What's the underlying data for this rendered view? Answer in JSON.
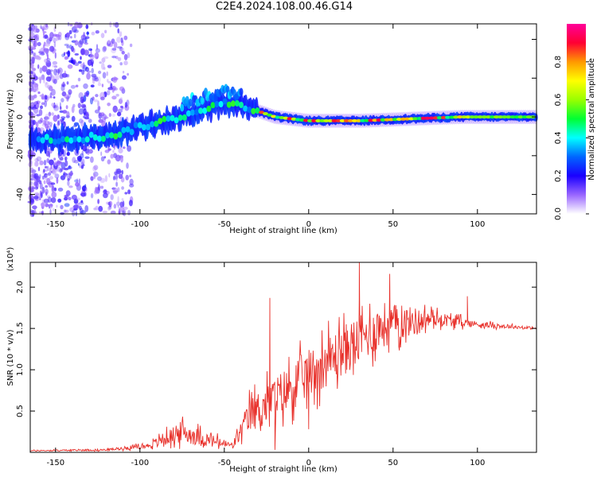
{
  "title": "C2E4.2024.108.00.46.G14",
  "chart_data": [
    {
      "type": "heatmap",
      "xlabel": "Height of straight line (km)",
      "ylabel": "Frequency (Hz)",
      "xlim": [
        -165,
        135
      ],
      "ylim": [
        -50,
        48
      ],
      "x_ticks": [
        -150,
        -100,
        -50,
        0,
        50,
        100
      ],
      "y_ticks": [
        -40,
        -20,
        0,
        20,
        40
      ],
      "colorbar": {
        "label": "Normalized spectral amplitude",
        "range": [
          0,
          1
        ],
        "ticks": [
          0.0,
          0.2,
          0.4,
          0.6,
          0.8
        ],
        "colormap": [
          "#ffffff",
          "#9966ff",
          "#1a00ff",
          "#0066ff",
          "#00ffff",
          "#00ff33",
          "#99ff00",
          "#ffff00",
          "#ff9900",
          "#ff0033",
          "#ff0099"
        ]
      },
      "ridge": [
        {
          "x": -165,
          "f": -12
        },
        {
          "x": -140,
          "f": -11
        },
        {
          "x": -120,
          "f": -10
        },
        {
          "x": -110,
          "f": -8
        },
        {
          "x": -100,
          "f": -5
        },
        {
          "x": -90,
          "f": -3
        },
        {
          "x": -80,
          "f": -1
        },
        {
          "x": -70,
          "f": 2
        },
        {
          "x": -60,
          "f": 5
        },
        {
          "x": -50,
          "f": 7
        },
        {
          "x": -40,
          "f": 6
        },
        {
          "x": -30,
          "f": 3
        },
        {
          "x": -20,
          "f": 0
        },
        {
          "x": 0,
          "f": -2
        },
        {
          "x": 30,
          "f": -2
        },
        {
          "x": 60,
          "f": -1
        },
        {
          "x": 90,
          "f": 0
        },
        {
          "x": 135,
          "f": 0
        }
      ],
      "notes": "Energy concentrated along a ridge rising from about -12 Hz at -165 km to about +7 Hz near -50 km, then flat near 0 Hz beyond -25 km."
    },
    {
      "type": "line",
      "xlabel": "Height of straight line (km)",
      "ylabel": "SNR (10 * v/v)",
      "y_multiplier": "(x10⁴)",
      "xlim": [
        -165,
        135
      ],
      "ylim": [
        0,
        2.3
      ],
      "x_ticks": [
        -150,
        -100,
        -50,
        0,
        50,
        100
      ],
      "y_ticks": [
        0.5,
        1.0,
        1.5,
        2.0
      ],
      "color": "#e8302a",
      "envelope": [
        {
          "x": -165,
          "mean": 0.02,
          "amp": 0.01
        },
        {
          "x": -120,
          "mean": 0.03,
          "amp": 0.02
        },
        {
          "x": -95,
          "mean": 0.08,
          "amp": 0.05
        },
        {
          "x": -75,
          "mean": 0.25,
          "amp": 0.22
        },
        {
          "x": -60,
          "mean": 0.15,
          "amp": 0.15
        },
        {
          "x": -45,
          "mean": 0.08,
          "amp": 0.06
        },
        {
          "x": -35,
          "mean": 0.45,
          "amp": 0.35
        },
        {
          "x": -20,
          "mean": 0.65,
          "amp": 0.45
        },
        {
          "x": 0,
          "mean": 0.95,
          "amp": 0.5
        },
        {
          "x": 25,
          "mean": 1.3,
          "amp": 0.5
        },
        {
          "x": 45,
          "mean": 1.55,
          "amp": 0.45
        },
        {
          "x": 75,
          "mean": 1.62,
          "amp": 0.15
        },
        {
          "x": 100,
          "mean": 1.55,
          "amp": 0.06
        },
        {
          "x": 135,
          "mean": 1.5,
          "amp": 0.02
        }
      ],
      "annotations": [
        {
          "x": -23,
          "y": 1.87
        },
        {
          "x": 30,
          "y": 2.3
        },
        {
          "x": 48,
          "y": 2.16
        },
        {
          "x": 94,
          "y": 1.89
        },
        {
          "x": 0,
          "y": 0.28
        },
        {
          "x": -20,
          "y": 0.03
        }
      ]
    }
  ]
}
